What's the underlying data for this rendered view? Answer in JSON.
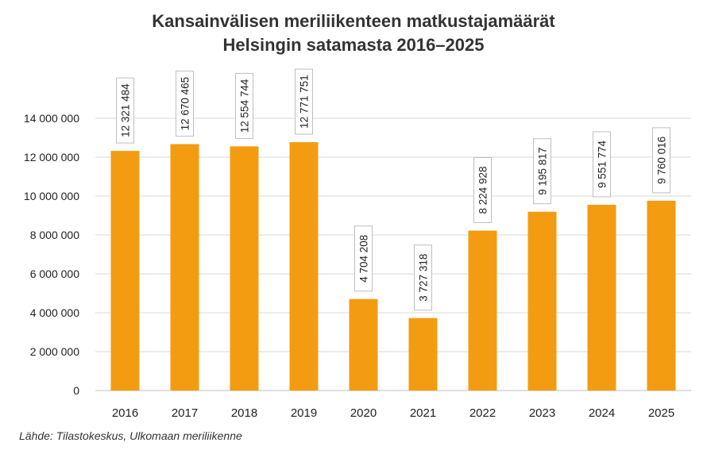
{
  "chart_data": {
    "type": "bar",
    "title": [
      "Kansainvälisen meriliikenteen matkustajamäärät",
      "Helsingin satamasta 2016–2025"
    ],
    "categories": [
      "2016",
      "2017",
      "2018",
      "2019",
      "2020",
      "2021",
      "2022",
      "2023",
      "2024",
      "2025"
    ],
    "values": [
      12321484,
      12670465,
      12554744,
      12771751,
      4704208,
      3727318,
      8224928,
      9195817,
      9551774,
      9760016
    ],
    "data_labels": [
      "12 321 484",
      "12 670 465",
      "12 554 744",
      "12 771 751",
      "4 704 208",
      "3 727 318",
      "8 224 928",
      "9 195 817",
      "9 551 774",
      "9 760 016"
    ],
    "y_ticks": [
      0,
      2000000,
      4000000,
      6000000,
      8000000,
      10000000,
      12000000,
      14000000
    ],
    "y_tick_labels": [
      "0",
      "2 000 000",
      "4 000 000",
      "6 000 000",
      "8 000 000",
      "10 000 000",
      "12 000 000",
      "14 000 000"
    ],
    "ylim": [
      0,
      14000000
    ],
    "xlabel": "",
    "ylabel": "",
    "grid": true,
    "bar_color": "#F39C12",
    "grid_color": "#d9d9d9",
    "source": "Lähde: Tilastokeskus, Ulkomaan meriliikenne"
  }
}
